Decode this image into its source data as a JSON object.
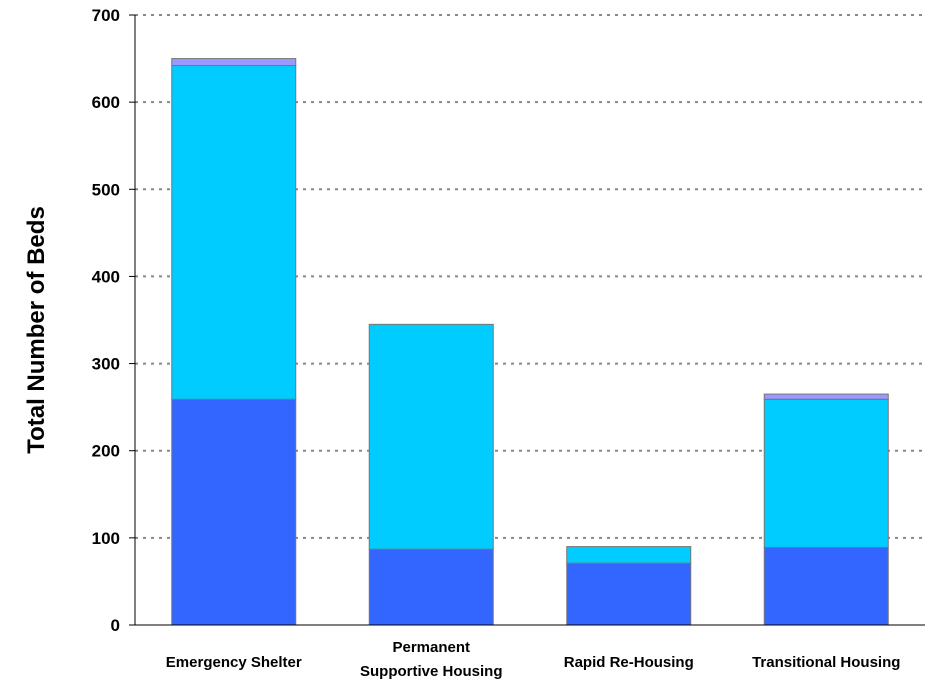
{
  "chart_data": {
    "type": "bar",
    "stacked": true,
    "title": "",
    "xlabel": "",
    "ylabel": "Total Number of Beds",
    "ylim": [
      0,
      700
    ],
    "yticks": [
      0,
      100,
      200,
      300,
      400,
      500,
      600,
      700
    ],
    "grid": true,
    "legend": "none",
    "categories": [
      "Emergency Shelter",
      "Permanent Supportive Housing",
      "Rapid Re-Housing",
      "Transitional Housing"
    ],
    "category_label_lines": [
      [
        "Emergency Shelter"
      ],
      [
        "Permanent",
        "Supportive Housing"
      ],
      [
        "Rapid Re-Housing"
      ],
      [
        "Transitional Housing"
      ]
    ],
    "series": [
      {
        "values": [
          259,
          87,
          71,
          89
        ],
        "color": "#3366ff"
      },
      {
        "values": [
          383,
          258,
          19,
          170
        ],
        "color": "#00ccff"
      },
      {
        "values": [
          8,
          0,
          0,
          6
        ],
        "color": "#9999ff"
      }
    ]
  }
}
